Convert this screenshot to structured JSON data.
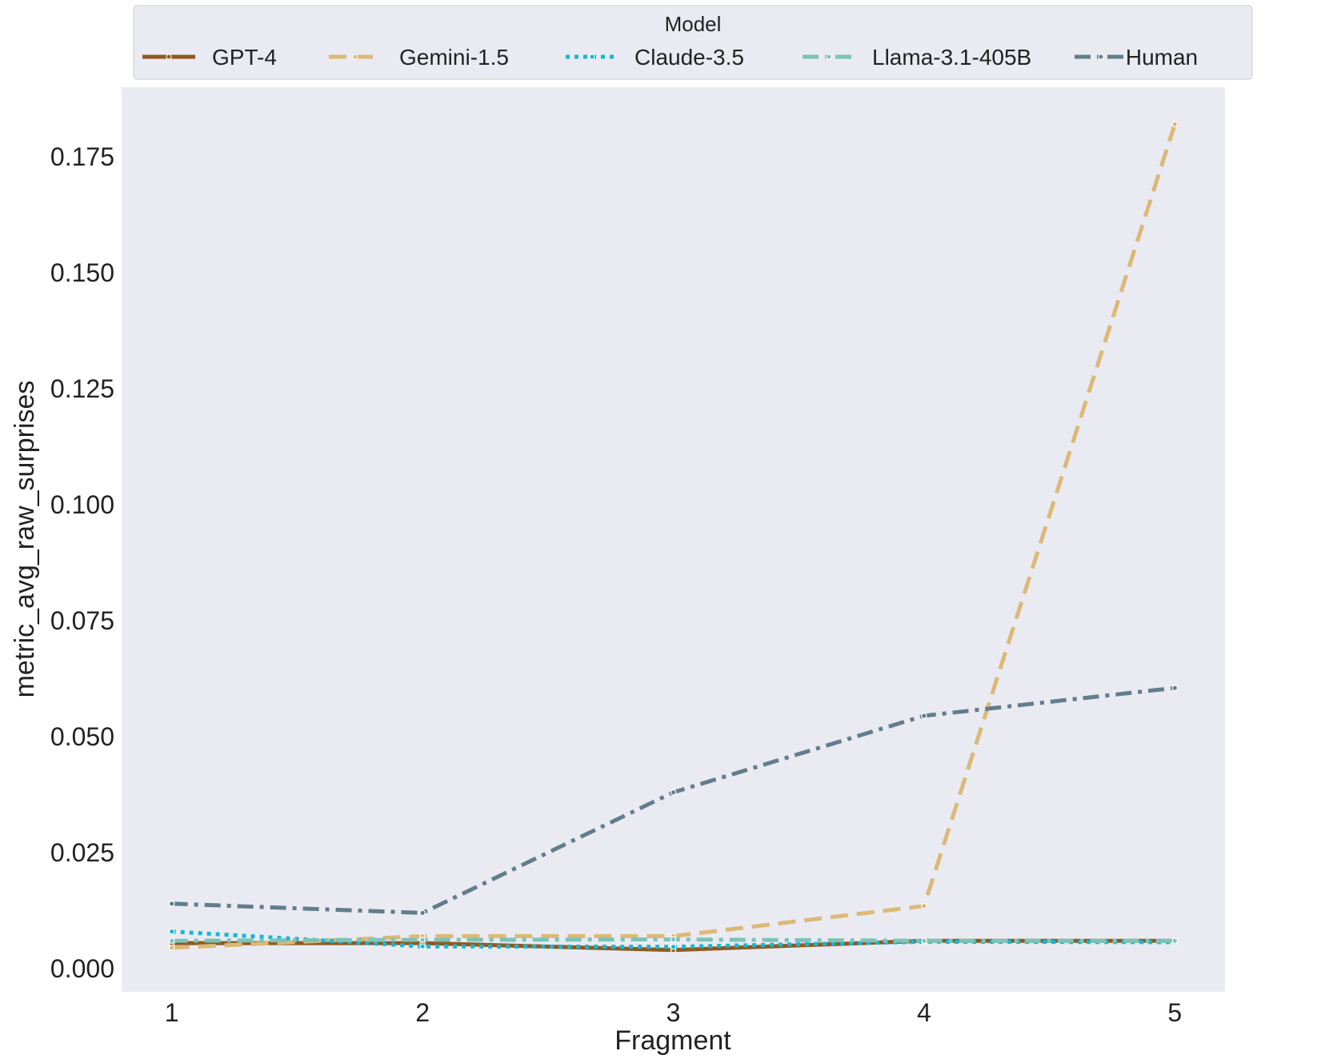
{
  "chart_data": {
    "type": "line",
    "xlabel": "Fragment",
    "ylabel": "metric_avg_raw_surprises",
    "x": [
      1,
      2,
      3,
      4,
      5
    ],
    "x_tick_labels": [
      "1",
      "2",
      "3",
      "4",
      "5"
    ],
    "xlim": [
      0.8,
      5.2
    ],
    "ylim": [
      -0.005,
      0.19
    ],
    "y_ticks": [
      0.0,
      0.025,
      0.05,
      0.075,
      0.1,
      0.125,
      0.15,
      0.175
    ],
    "y_tick_labels": [
      "0.000",
      "0.025",
      "0.050",
      "0.075",
      "0.100",
      "0.125",
      "0.150",
      "0.175"
    ],
    "grid": false,
    "legend": {
      "title": "Model",
      "placement": "top"
    },
    "series": [
      {
        "name": "GPT-4",
        "values": [
          0.0055,
          0.0055,
          0.004,
          0.006,
          0.006
        ],
        "color": "#8f5a1f",
        "dash": "solid"
      },
      {
        "name": "Gemini-1.5",
        "values": [
          0.0045,
          0.007,
          0.007,
          0.0135,
          0.182
        ],
        "color": "#dbb976",
        "dash": "dashed"
      },
      {
        "name": "Claude-3.5",
        "values": [
          0.008,
          0.0048,
          0.0047,
          0.0058,
          0.0057
        ],
        "color": "#14b8d4",
        "dash": "dotted"
      },
      {
        "name": "Llama-3.1-405B",
        "values": [
          0.006,
          0.0062,
          0.0063,
          0.006,
          0.006
        ],
        "color": "#7cc3b7",
        "dash": "dashdot"
      },
      {
        "name": "Human",
        "values": [
          0.014,
          0.012,
          0.038,
          0.0545,
          0.0605
        ],
        "color": "#627d8b",
        "dash": "dashdot"
      }
    ]
  }
}
